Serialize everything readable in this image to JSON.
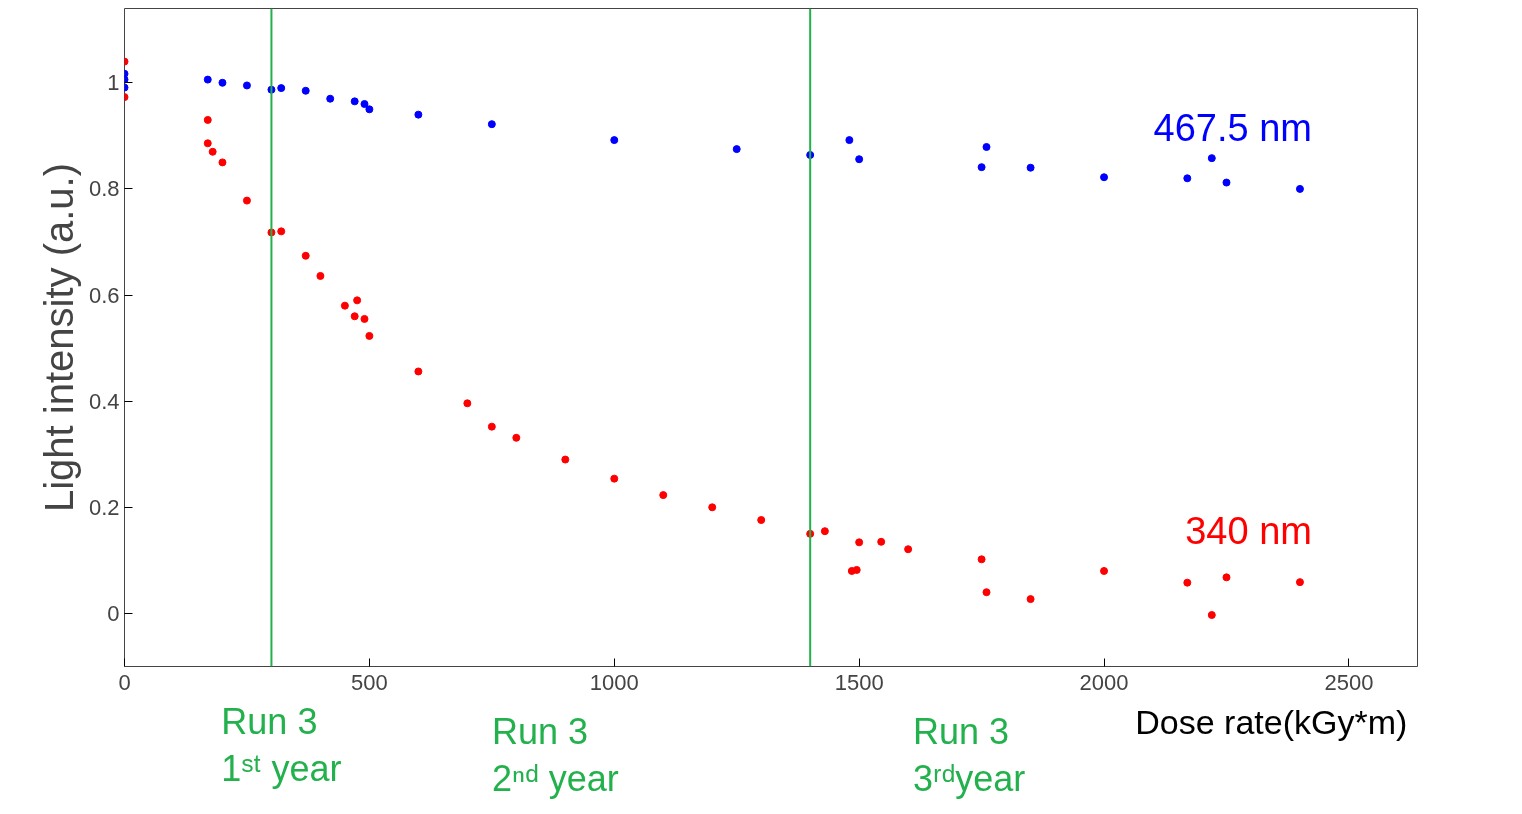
{
  "chart_data": {
    "type": "scatter",
    "xlabel": "Dose rate(kGy*m)",
    "ylabel": "Light intensity (a.u.)",
    "xlim": [
      0,
      2640
    ],
    "ylim": [
      -0.1,
      1.14
    ],
    "xticks": [
      0,
      500,
      1000,
      1500,
      2000,
      2500
    ],
    "yticks": [
      0,
      0.2,
      0.4,
      0.6,
      0.8,
      1
    ],
    "marker": "circle",
    "grid": false,
    "series": [
      {
        "name": "467.5 nm",
        "color": "#0000ff",
        "x": [
          0,
          0,
          0,
          170,
          200,
          250,
          300,
          320,
          370,
          420,
          470,
          490,
          500,
          600,
          750,
          1000,
          1250,
          1400,
          1480,
          1500,
          1750,
          1760,
          1850,
          2000,
          2170,
          2220,
          2250,
          2400
        ],
        "values": [
          1.017,
          1.006,
          0.991,
          1.006,
          1.0,
          0.995,
          0.987,
          0.99,
          0.985,
          0.97,
          0.965,
          0.96,
          0.95,
          0.94,
          0.922,
          0.892,
          0.875,
          0.864,
          0.892,
          0.856,
          0.841,
          0.879,
          0.84,
          0.822,
          0.82,
          0.858,
          0.812,
          0.8
        ]
      },
      {
        "name": "340 nm",
        "color": "#ff0000",
        "x": [
          0,
          0,
          170,
          170,
          180,
          200,
          250,
          300,
          320,
          370,
          400,
          450,
          470,
          475,
          490,
          500,
          600,
          700,
          750,
          800,
          900,
          1000,
          1100,
          1200,
          1300,
          1400,
          1430,
          1485,
          1495,
          1500,
          1545,
          1600,
          1750,
          1760,
          1850,
          2000,
          2170,
          2220,
          2250,
          2400
        ],
        "values": [
          1.04,
          0.973,
          0.93,
          0.886,
          0.87,
          0.85,
          0.778,
          0.718,
          0.72,
          0.674,
          0.636,
          0.58,
          0.56,
          0.59,
          0.555,
          0.523,
          0.456,
          0.396,
          0.352,
          0.331,
          0.29,
          0.254,
          0.223,
          0.2,
          0.176,
          0.15,
          0.155,
          0.08,
          0.082,
          0.134,
          0.135,
          0.121,
          0.102,
          0.04,
          0.027,
          0.08,
          0.058,
          -0.003,
          0.068,
          0.059
        ]
      }
    ],
    "ref_lines": [
      {
        "axis": "x",
        "value": 300,
        "color": "#22b14c"
      },
      {
        "axis": "x",
        "value": 1400,
        "color": "#22b14c"
      }
    ],
    "annotations": [
      "Run 3\n1ˢᵗ year",
      "Run 3\n2ⁿᵈ year",
      "Run 3\n3ʳᵈyear"
    ]
  }
}
